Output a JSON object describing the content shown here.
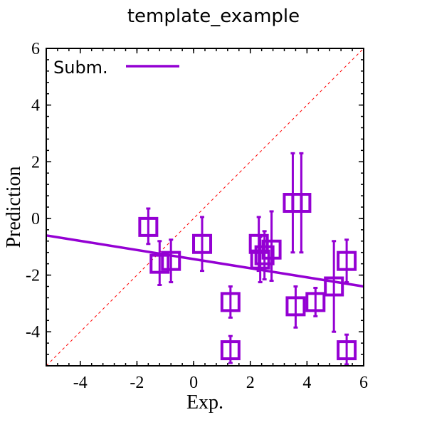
{
  "colors": {
    "series": "#9400d3",
    "identity_line": "#ff0000",
    "axis": "#000000"
  },
  "chart_data": {
    "type": "scatter",
    "title": "template_example",
    "xlabel": "Exp.",
    "ylabel": "Prediction",
    "xlim": [
      -5.2,
      6
    ],
    "ylim": [
      -5.2,
      6
    ],
    "xticks": [
      -4,
      -2,
      0,
      2,
      4,
      6
    ],
    "yticks": [
      -4,
      -2,
      0,
      2,
      4,
      6
    ],
    "xtick_labels": [
      "-4",
      "-2",
      "0",
      "2",
      "4",
      "6"
    ],
    "ytick_labels": [
      "-4",
      "-2",
      "0",
      "2",
      "4",
      "6"
    ],
    "grid": false,
    "legend": {
      "position": "top-left",
      "entries": [
        "Subm."
      ]
    },
    "identity_line": {
      "style": "dashed",
      "from": [
        -5.2,
        -5.2
      ],
      "to": [
        6,
        6
      ]
    },
    "series": [
      {
        "name": "Subm.",
        "marker": "open-square",
        "points": [
          {
            "x": -1.6,
            "y": -0.3,
            "yerr": [
              0.6,
              0.65
            ]
          },
          {
            "x": -1.2,
            "y": -1.6,
            "yerr": [
              0.75,
              0.8
            ]
          },
          {
            "x": -0.8,
            "y": -1.5,
            "yerr": [
              0.75,
              0.75
            ]
          },
          {
            "x": 0.3,
            "y": -0.9,
            "yerr": [
              0.95,
              0.95
            ]
          },
          {
            "x": 1.3,
            "y": -2.95,
            "yerr": [
              0.55,
              0.55
            ]
          },
          {
            "x": 1.3,
            "y": -4.65,
            "yerr": [
              0.45,
              0.5
            ]
          },
          {
            "x": 2.3,
            "y": -0.9,
            "yerr": [
              0.95,
              0.95
            ]
          },
          {
            "x": 2.35,
            "y": -1.45,
            "yerr": [
              0.8,
              0.8
            ]
          },
          {
            "x": 2.5,
            "y": -1.3,
            "yerr": [
              0.85,
              0.85
            ]
          },
          {
            "x": 2.75,
            "y": -1.1,
            "yerr": [
              1.1,
              1.35
            ]
          },
          {
            "x": 3.5,
            "y": 0.55,
            "yerr": [
              1.75,
              1.75
            ]
          },
          {
            "x": 3.8,
            "y": 0.55,
            "yerr": [
              1.75,
              1.75
            ]
          },
          {
            "x": 3.6,
            "y": -3.1,
            "yerr": [
              0.75,
              0.7
            ]
          },
          {
            "x": 4.3,
            "y": -2.95,
            "yerr": [
              0.5,
              0.5
            ]
          },
          {
            "x": 4.95,
            "y": -2.4,
            "yerr": [
              1.6,
              1.6
            ]
          },
          {
            "x": 5.4,
            "y": -1.5,
            "yerr": [
              0.75,
              0.75
            ]
          },
          {
            "x": 5.4,
            "y": -4.65,
            "yerr": [
              0.5,
              0.55
            ]
          }
        ],
        "fit_line": {
          "from": [
            -5.2,
            -0.6
          ],
          "to": [
            6,
            -2.4
          ]
        }
      }
    ]
  }
}
